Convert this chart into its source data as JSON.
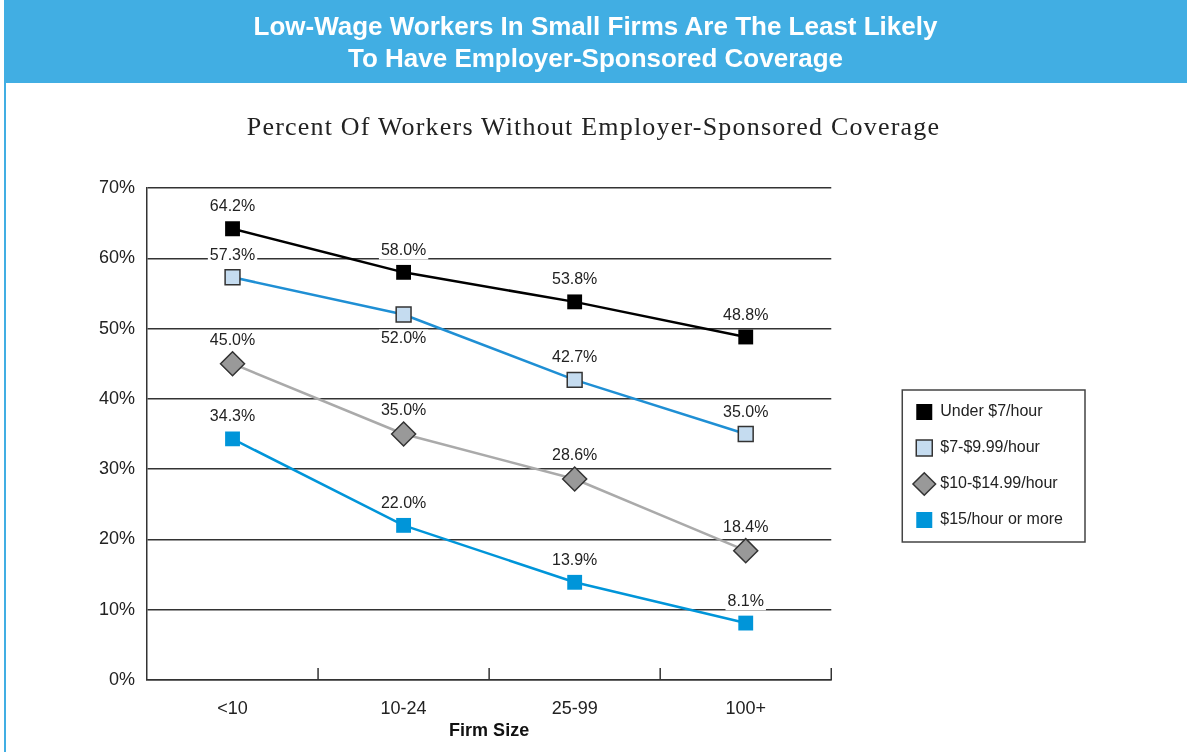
{
  "chart_data": {
    "type": "line",
    "title": "Low-Wage Workers In Small Firms Are The Least Likely To Have Employer-Sponsored Coverage",
    "subtitle": "Percent Of Workers Without Employer-Sponsored Coverage",
    "xlabel": "Firm Size",
    "categories": [
      "<10",
      "10-24",
      "25-99",
      "100+"
    ],
    "series": [
      {
        "name": "Under $7/hour",
        "color": "#000000",
        "marker": "square",
        "values": [
          64.2,
          58.0,
          53.8,
          48.8
        ],
        "value_labels": [
          "64.2%",
          "58.0%",
          "53.8%",
          "48.8%"
        ]
      },
      {
        "name": "$7-$9.99/hour",
        "color": "#1f8fd4",
        "colors": [
          "#c5dcf0",
          "#c5dcf0",
          "#c5dcf0",
          "#c5dcf0"
        ],
        "marker": "square",
        "values": [
          57.3,
          52.0,
          42.7,
          35.0
        ],
        "value_labels": [
          "57.3%",
          "52.0%",
          "42.7%",
          "35.0%"
        ]
      },
      {
        "name": "$10-$14.99/hour",
        "color": "#aaaaaa",
        "colors": [
          "#999999",
          "#999999",
          "#999999",
          "#999999"
        ],
        "marker": "diamond",
        "values": [
          45.0,
          35.0,
          28.6,
          18.4
        ],
        "value_labels": [
          "45.0%",
          "35.0%",
          "28.6%",
          "18.4%"
        ]
      },
      {
        "name": "$15/hour or more",
        "color": "#0095d9",
        "marker": "square",
        "values": [
          34.3,
          22.0,
          13.9,
          8.1
        ],
        "value_labels": [
          "34.3%",
          "22.0%",
          "13.9%",
          "8.1%"
        ]
      }
    ],
    "ylim": [
      0,
      70
    ],
    "yticks": [
      {
        "value": 0,
        "label": "0%"
      },
      {
        "value": 10,
        "label": "10%"
      },
      {
        "value": 20,
        "label": "20%"
      },
      {
        "value": 30,
        "label": "30%"
      },
      {
        "value": 40,
        "label": "40%"
      },
      {
        "value": 50,
        "label": "50%"
      },
      {
        "value": 60,
        "label": "60%"
      },
      {
        "value": 70,
        "label": "70%"
      }
    ],
    "grid": "y",
    "legend": "right"
  }
}
